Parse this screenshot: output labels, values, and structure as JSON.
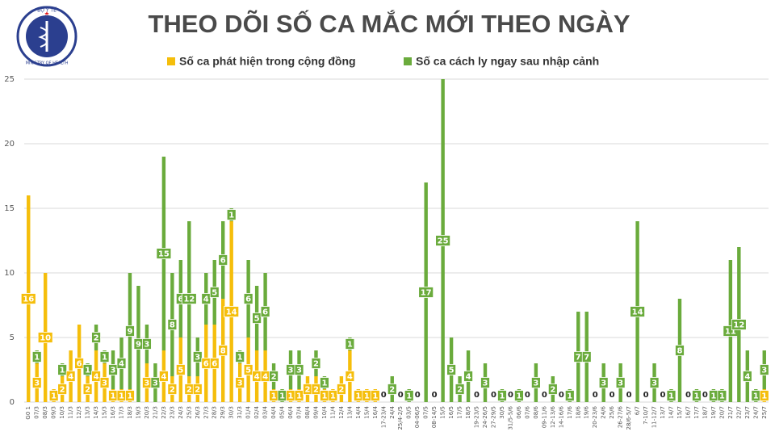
{
  "logo": {
    "top": "BỘ Y TẾ",
    "bottom": "MINISTRY OF HEALTH"
  },
  "chart_data": {
    "type": "bar",
    "stacked": true,
    "title": "THEO DÕI SỐ CA MẮC MỚI THEO NGÀY",
    "categories": [
      "G0 1",
      "07/3",
      "08/3",
      "09/3",
      "10/3",
      "11/3",
      "12/3",
      "13/3",
      "14/3",
      "15/3",
      "16/3",
      "17/3",
      "18/3",
      "19/3",
      "20/3",
      "21/3",
      "22/3",
      "23/3",
      "24/3",
      "25/3",
      "26/3",
      "27/3",
      "28/3",
      "29/3",
      "30/3",
      "31/3",
      "01/4",
      "02/4",
      "03/4",
      "04/4",
      "05/4",
      "06/4",
      "07/4",
      "08/4",
      "09/4",
      "10/4",
      "11/4",
      "12/4",
      "13/4",
      "14/4",
      "15/4",
      "16/4",
      "17-23/4",
      "24/4",
      "25/4-2/5",
      "03/5",
      "04-06/5",
      "07/5",
      "08-14/5",
      "15/5",
      "16/5",
      "17/5",
      "18/5",
      "19-23/5",
      "24-26/5",
      "27-29/5",
      "30/5",
      "31/5-5/6",
      "06/6",
      "07/6",
      "08/6",
      "09-11/6",
      "12-13/6",
      "14-16/6",
      "17/6",
      "18/6",
      "19/6",
      "20-23/6",
      "24/6",
      "25/6",
      "26-27/6",
      "28/6-5/7",
      "6/7",
      "7-10/7",
      "11-12/7",
      "13/7",
      "14/7",
      "15/7",
      "16/7",
      "17/7",
      "18/7",
      "19/7",
      "20/7",
      "21/7",
      "22/7",
      "23/7",
      "24/7",
      "25/7"
    ],
    "series": [
      {
        "name": "Số ca phát hiện trong cộng đồng",
        "color": "#f5be0b",
        "values": [
          16,
          3,
          10,
          1,
          2,
          4,
          6,
          2,
          4,
          3,
          1,
          1,
          1,
          0,
          3,
          0,
          4,
          2,
          5,
          2,
          2,
          6,
          6,
          8,
          14,
          3,
          5,
          4,
          4,
          1,
          0,
          1,
          1,
          2,
          2,
          1,
          1,
          2,
          4,
          1,
          1,
          1,
          0,
          0,
          0,
          0,
          0,
          0,
          0,
          0,
          0,
          0,
          0,
          0,
          0,
          0,
          0,
          0,
          0,
          0,
          0,
          0,
          0,
          0,
          0,
          0,
          0,
          0,
          0,
          0,
          0,
          0,
          0,
          0,
          0,
          0,
          0,
          0,
          0,
          0,
          0,
          0,
          0,
          0,
          0,
          0,
          0,
          1
        ]
      },
      {
        "name": "Số ca cách ly ngay sau nhập cảnh",
        "color": "#6aab3c",
        "values": [
          0,
          1,
          0,
          0,
          1,
          0,
          0,
          1,
          2,
          1,
          3,
          4,
          9,
          9,
          3,
          3,
          15,
          8,
          6,
          12,
          3,
          4,
          5,
          6,
          1,
          1,
          6,
          5,
          6,
          2,
          1,
          3,
          3,
          0,
          2,
          1,
          0,
          0,
          1,
          0,
          0,
          0,
          0,
          2,
          0,
          1,
          0,
          17,
          0,
          25,
          5,
          2,
          4,
          0,
          3,
          0,
          1,
          0,
          1,
          0,
          3,
          0,
          2,
          0,
          1,
          7,
          7,
          0,
          3,
          0,
          3,
          0,
          14,
          0,
          3,
          0,
          1,
          8,
          0,
          1,
          0,
          1,
          1,
          11,
          12,
          4,
          1,
          3
        ]
      }
    ],
    "ylim": [
      0,
      25
    ],
    "yticks": [
      0,
      5,
      10,
      15,
      20,
      25
    ],
    "grid": true
  }
}
